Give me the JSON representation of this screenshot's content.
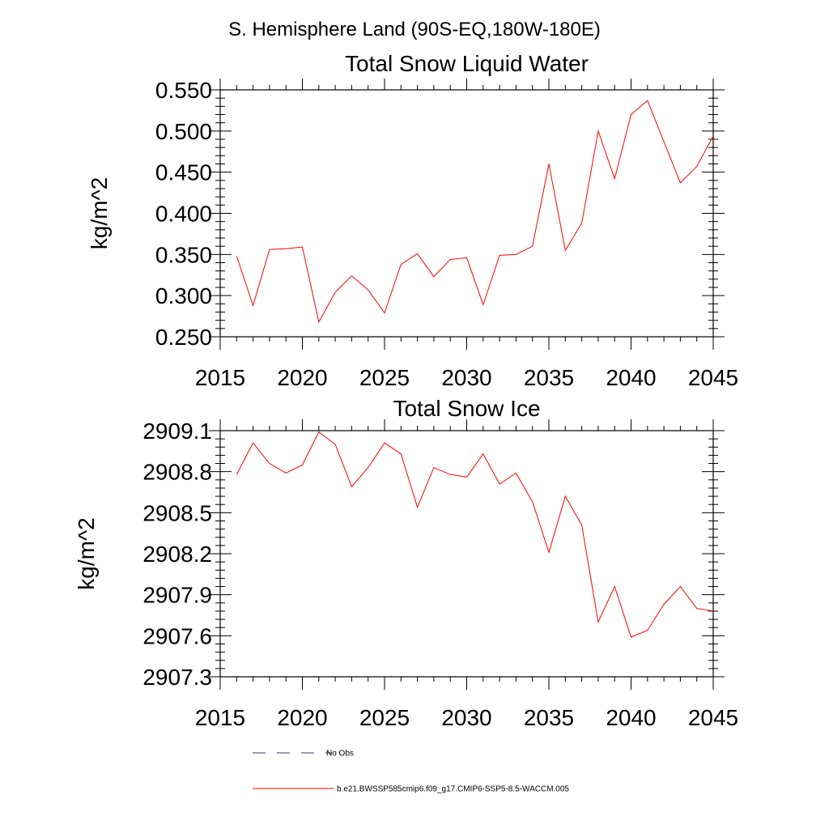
{
  "figure": {
    "suptitle": "S. Hemisphere Land (90S-EQ,180W-180E)"
  },
  "chart_data": [
    {
      "type": "line",
      "title": "Total Snow Liquid Water",
      "xlabel": "",
      "ylabel": "kg/m^2",
      "xlim": [
        2015,
        2045
      ],
      "ylim": [
        0.25,
        0.55
      ],
      "x_ticks": [
        2015,
        2020,
        2025,
        2030,
        2035,
        2040,
        2045
      ],
      "x_tick_labels": [
        "2015",
        "2020",
        "2025",
        "2030",
        "2035",
        "2040",
        "2045"
      ],
      "y_ticks": [
        0.25,
        0.3,
        0.35,
        0.4,
        0.45,
        0.5,
        0.55
      ],
      "y_tick_labels": [
        "0.250",
        "0.300",
        "0.350",
        "0.400",
        "0.450",
        "0.500",
        "0.550"
      ],
      "x": [
        2016,
        2017,
        2018,
        2019,
        2020,
        2021,
        2022,
        2023,
        2024,
        2025,
        2026,
        2027,
        2028,
        2029,
        2030,
        2031,
        2032,
        2033,
        2034,
        2035,
        2036,
        2037,
        2038,
        2039,
        2040,
        2041,
        2042,
        2043,
        2044,
        2045
      ],
      "series": [
        {
          "name": "b.e21.BWSSP585cmip6.f09_g17.CMIP6-SSP5-8.5-WACCM.005",
          "color": "#ff0000",
          "values": [
            0.348,
            0.288,
            0.356,
            0.357,
            0.359,
            0.268,
            0.304,
            0.324,
            0.307,
            0.279,
            0.338,
            0.351,
            0.323,
            0.344,
            0.346,
            0.289,
            0.349,
            0.35,
            0.36,
            0.46,
            0.355,
            0.388,
            0.5,
            0.442,
            0.52,
            0.537,
            0.487,
            0.437,
            0.457,
            0.494
          ]
        }
      ]
    },
    {
      "type": "line",
      "title": "Total Snow Ice",
      "xlabel": "",
      "ylabel": "kg/m^2",
      "xlim": [
        2015,
        2045
      ],
      "ylim": [
        2907.3,
        2909.1
      ],
      "x_ticks": [
        2015,
        2020,
        2025,
        2030,
        2035,
        2040,
        2045
      ],
      "x_tick_labels": [
        "2015",
        "2020",
        "2025",
        "2030",
        "2035",
        "2040",
        "2045"
      ],
      "y_ticks": [
        2907.3,
        2907.6,
        2907.9,
        2908.2,
        2908.5,
        2908.8,
        2909.1
      ],
      "y_tick_labels": [
        "2907.3",
        "2907.6",
        "2907.9",
        "2908.2",
        "2908.5",
        "2908.8",
        "2909.1"
      ],
      "x": [
        2016,
        2017,
        2018,
        2019,
        2020,
        2021,
        2022,
        2023,
        2024,
        2025,
        2026,
        2027,
        2028,
        2029,
        2030,
        2031,
        2032,
        2033,
        2034,
        2035,
        2036,
        2037,
        2038,
        2039,
        2040,
        2041,
        2042,
        2043,
        2044,
        2045
      ],
      "series": [
        {
          "name": "b.e21.BWSSP585cmip6.f09_g17.CMIP6-SSP5-8.5-WACCM.005",
          "color": "#ff0000",
          "values": [
            2908.78,
            2909.01,
            2908.86,
            2908.79,
            2908.85,
            2909.09,
            2909.0,
            2908.69,
            2908.83,
            2909.01,
            2908.93,
            2908.54,
            2908.83,
            2908.78,
            2908.76,
            2908.93,
            2908.71,
            2908.79,
            2908.58,
            2908.21,
            2908.62,
            2908.41,
            2907.7,
            2907.96,
            2907.59,
            2907.64,
            2907.83,
            2907.96,
            2907.8,
            2907.78
          ]
        }
      ]
    }
  ],
  "legend": {
    "placement": "bottom",
    "entries": [
      {
        "label": "No Obs",
        "style": "dashed",
        "color": "#3a3a6a"
      },
      {
        "label": "b.e21.BWSSP585cmip6.f09_g17.CMIP6-SSP5-8.5-WACCM.005",
        "style": "solid",
        "color": "#ff0000"
      }
    ]
  }
}
